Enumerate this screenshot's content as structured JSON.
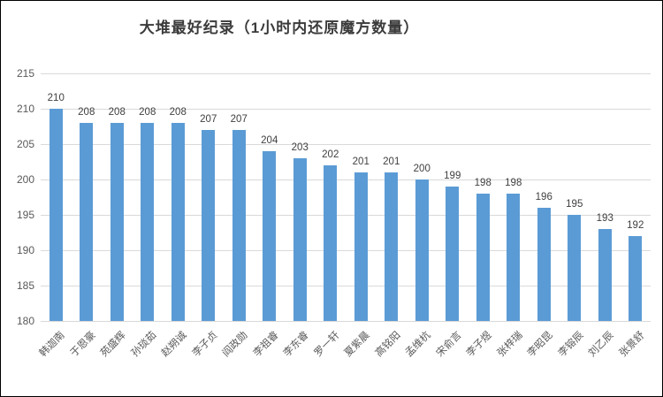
{
  "chart_data": {
    "type": "bar",
    "title": "大堆最好纪录（1小时内还原魔方数量）",
    "categories": [
      "韩迦南",
      "于恩豪",
      "苑盛辉",
      "孙琰茹",
      "赵朔诚",
      "李子贞",
      "阎政勋",
      "李祖睿",
      "李东睿",
      "罗一轩",
      "夏紫晨",
      "高铭阳",
      "孟维杭",
      "宋俞言",
      "李子煜",
      "张梓瑞",
      "李昭昆",
      "李镕辰",
      "刘乙辰",
      "张景舒"
    ],
    "values": [
      210,
      208,
      208,
      208,
      208,
      207,
      207,
      204,
      203,
      202,
      201,
      201,
      200,
      199,
      198,
      198,
      196,
      195,
      193,
      192
    ],
    "yticks": [
      215,
      210,
      205,
      200,
      195,
      190,
      185,
      180
    ],
    "ylim": [
      180,
      215
    ],
    "xlabel": "",
    "ylabel": "",
    "grid": true,
    "legend": "none",
    "bar_color": "#5b9bd5",
    "gridline_color": "#d9d9d9",
    "data_labels_shown": true
  }
}
